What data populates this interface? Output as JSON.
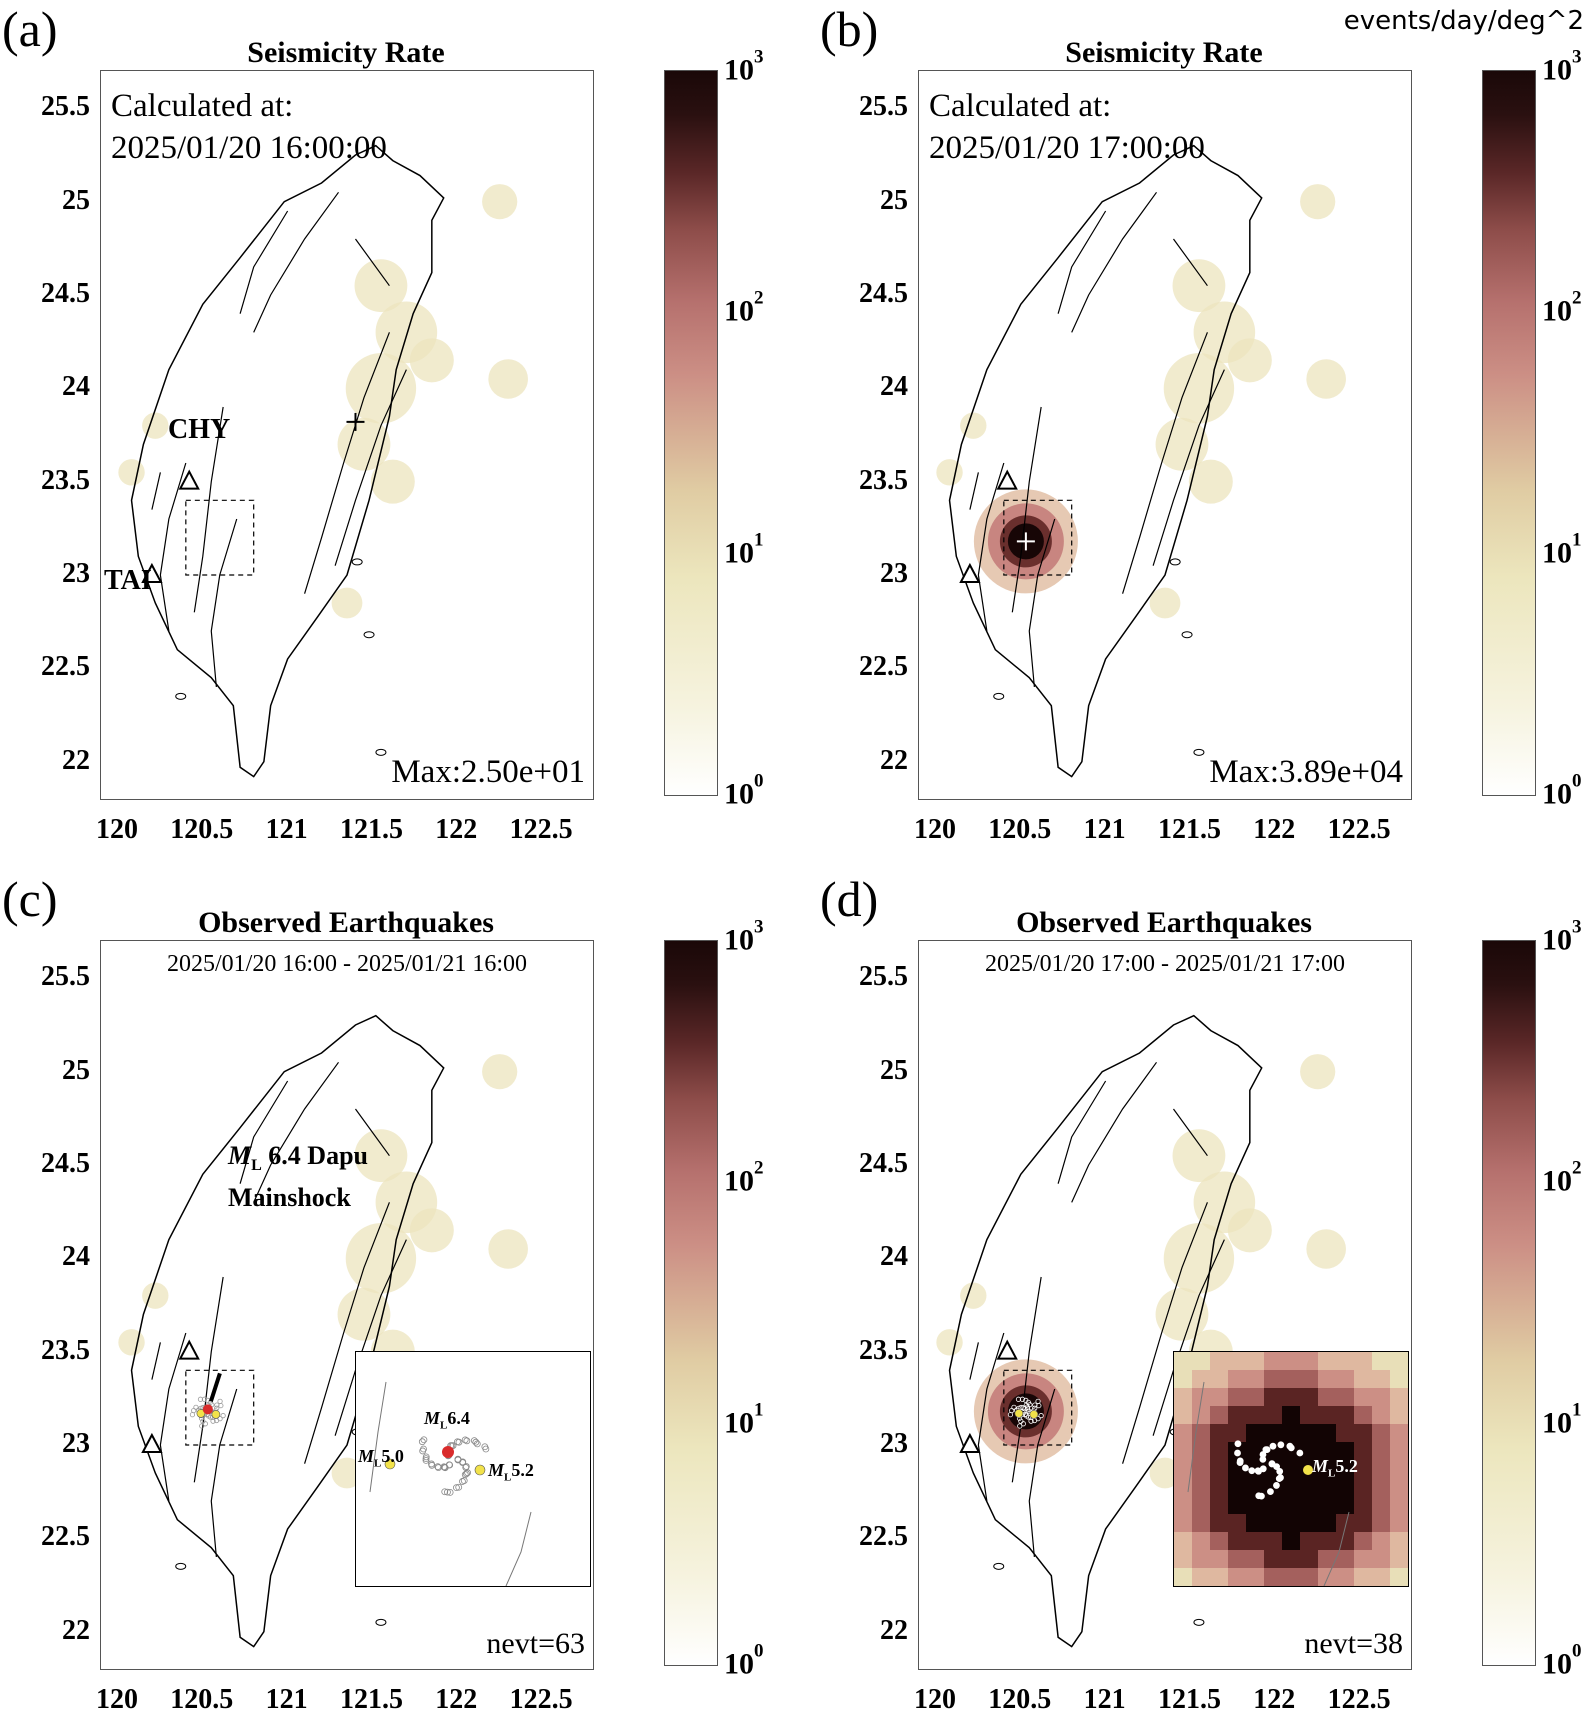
{
  "figure": {
    "units_label": "events/day/deg^2"
  },
  "axes": {
    "y_ticks": [
      "25.5",
      "25",
      "24.5",
      "24",
      "23.5",
      "23",
      "22.5",
      "22"
    ],
    "x_ticks": [
      "120",
      "120.5",
      "121",
      "121.5",
      "122",
      "122.5"
    ],
    "xlim": [
      119.9,
      122.8
    ],
    "ylim": [
      21.8,
      25.7
    ]
  },
  "colorbar": {
    "base": "10",
    "exponents": [
      "3",
      "2",
      "1",
      "0"
    ],
    "colors": [
      "#ffffff",
      "#ece6bd",
      "#cc8f85",
      "#8e4d4a",
      "#1a0808"
    ]
  },
  "stations": [
    {
      "name": "CHY",
      "lon": 120.42,
      "lat": 23.5
    },
    {
      "name": "TAI",
      "lon": 120.2,
      "lat": 23.0
    }
  ],
  "panels": [
    {
      "letter": "(a)",
      "title": "Seismicity Rate",
      "calc_label": "Calculated at:",
      "calc_time": "2025/01/20 16:00:00",
      "max_label": "Max:2.50e+01",
      "marker": {
        "lon": 121.4,
        "lat": 23.82
      }
    },
    {
      "letter": "(b)",
      "title": "Seismicity Rate",
      "calc_label": "Calculated at:",
      "calc_time": "2025/01/20 17:00:00",
      "max_label": "Max:3.89e+04",
      "marker": {
        "lon": 120.53,
        "lat": 23.18
      }
    },
    {
      "letter": "(c)",
      "title": "Observed Earthquakes",
      "period": "2025/01/20 16:00 - 2025/01/21 16:00",
      "nevt_label": "nevt=63",
      "mainshock_line1": "6.4 Dapu",
      "mainshock_line2": "Mainshock",
      "mainshock_m": "M",
      "mainshock_sub": "L",
      "inset_labels": {
        "main": "6.4",
        "a1": "5.0",
        "a2": "5.2",
        "m": "M",
        "sub": "L"
      }
    },
    {
      "letter": "(d)",
      "title": "Observed Earthquakes",
      "period": "2025/01/20 17:00 - 2025/01/21 17:00",
      "nevt_label": "nevt=38",
      "inset_labels": {
        "a2": "5.2",
        "m": "M",
        "sub": "L"
      }
    }
  ],
  "chart_data": {
    "type": "heatmap",
    "mainshock": {
      "name": "Dapu",
      "magnitude_ML": 6.4,
      "lon": 120.53,
      "lat": 23.18
    },
    "aftershocks_labeled": [
      {
        "magnitude_ML": 5.0
      },
      {
        "magnitude_ML": 5.2
      }
    ],
    "max_rate": {
      "a": 25.0,
      "b": 38900
    },
    "nevt": {
      "c": 63,
      "d": 38
    },
    "colorbar_range": [
      1,
      1000
    ],
    "colorbar_scale": "log"
  }
}
